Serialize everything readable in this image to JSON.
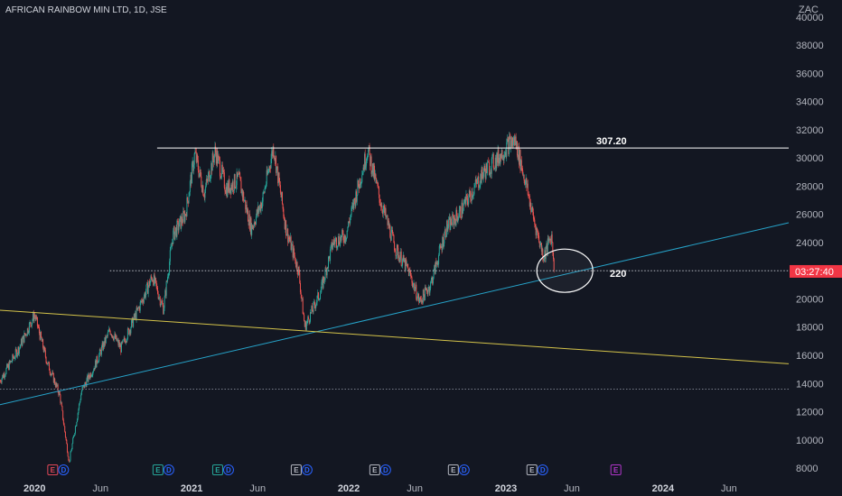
{
  "colors": {
    "background": "#131722",
    "up": "#26a69a",
    "down": "#ef5350",
    "wick": "#b2b5be",
    "axis_text": "#b2b5be",
    "resistance": "#ffffff",
    "trend_blue": "#26a3c9",
    "trend_yellow": "#d4c34a",
    "price_badge": "#f23645",
    "earnings": "#e04758",
    "dividend": "#2962ff",
    "split": "#b2b5be",
    "future": "#b035c9",
    "green_event": "#26a69a"
  },
  "chart_data": {
    "type": "candlestick",
    "title": "AFRICAN RAINBOW MIN LTD, 1D, JSE",
    "currency": "ZAC",
    "y_ticks": [
      8000,
      10000,
      12000,
      14000,
      16000,
      18000,
      20000,
      22000,
      24000,
      26000,
      28000,
      30000,
      32000,
      34000,
      36000,
      38000,
      40000
    ],
    "x_labels": [
      {
        "label": "2020",
        "bold": true,
        "t": 2020.0
      },
      {
        "label": "Jun",
        "bold": false,
        "t": 2020.42
      },
      {
        "label": "2021",
        "bold": true,
        "t": 2021.0
      },
      {
        "label": "Jun",
        "bold": false,
        "t": 2021.42
      },
      {
        "label": "2022",
        "bold": true,
        "t": 2022.0
      },
      {
        "label": "Jun",
        "bold": false,
        "t": 2022.42
      },
      {
        "label": "2023",
        "bold": true,
        "t": 2023.0
      },
      {
        "label": "Jun",
        "bold": false,
        "t": 2023.42
      },
      {
        "label": "2024",
        "bold": true,
        "t": 2024.0
      },
      {
        "label": "Jun",
        "bold": false,
        "t": 2024.42
      }
    ],
    "x_range": [
      2019.78,
      2024.8
    ],
    "y_range": [
      7300,
      41200
    ],
    "price_path": [
      [
        2019.78,
        14200
      ],
      [
        2019.9,
        16500
      ],
      [
        2020.0,
        18900
      ],
      [
        2020.08,
        15500
      ],
      [
        2020.16,
        13200
      ],
      [
        2020.22,
        8400
      ],
      [
        2020.3,
        13500
      ],
      [
        2020.38,
        15200
      ],
      [
        2020.48,
        17800
      ],
      [
        2020.55,
        16500
      ],
      [
        2020.65,
        19000
      ],
      [
        2020.75,
        21600
      ],
      [
        2020.82,
        19300
      ],
      [
        2020.88,
        24500
      ],
      [
        2020.96,
        26000
      ],
      [
        2021.02,
        30300
      ],
      [
        2021.08,
        27500
      ],
      [
        2021.15,
        30500
      ],
      [
        2021.22,
        27800
      ],
      [
        2021.3,
        28500
      ],
      [
        2021.38,
        25000
      ],
      [
        2021.45,
        27000
      ],
      [
        2021.52,
        30800
      ],
      [
        2021.6,
        25000
      ],
      [
        2021.68,
        22000
      ],
      [
        2021.72,
        18000
      ],
      [
        2021.82,
        20500
      ],
      [
        2021.9,
        24000
      ],
      [
        2021.98,
        24500
      ],
      [
        2022.06,
        28000
      ],
      [
        2022.12,
        30600
      ],
      [
        2022.2,
        27000
      ],
      [
        2022.3,
        23500
      ],
      [
        2022.38,
        22000
      ],
      [
        2022.45,
        19800
      ],
      [
        2022.52,
        21000
      ],
      [
        2022.62,
        25000
      ],
      [
        2022.7,
        26000
      ],
      [
        2022.78,
        27500
      ],
      [
        2022.86,
        29000
      ],
      [
        2022.95,
        30000
      ],
      [
        2023.02,
        31000
      ],
      [
        2023.06,
        31200
      ],
      [
        2023.12,
        28500
      ],
      [
        2023.18,
        25500
      ],
      [
        2023.24,
        23000
      ],
      [
        2023.29,
        24500
      ],
      [
        2023.31,
        22000
      ]
    ],
    "resistance": {
      "value": 30700,
      "label": "307.20",
      "t_start": 2020.78,
      "t_end": 2024.8
    },
    "support": {
      "value": 22000,
      "label": "220",
      "t_start": 2020.48,
      "t_end": 2024.8
    },
    "lower_level": {
      "value": 13600
    },
    "trend_blue": {
      "from": [
        2019.78,
        12500
      ],
      "to": [
        2024.8,
        25400
      ]
    },
    "trend_yellow": {
      "from": [
        2019.78,
        19200
      ],
      "to": [
        2024.8,
        15400
      ]
    },
    "highlight_circle": {
      "t": 2023.375,
      "value": 22000
    },
    "last_price": {
      "value": 21950,
      "label": "03:27:40"
    },
    "events": [
      {
        "t": 2020.15,
        "letters": [
          "E",
          "D"
        ],
        "colors": [
          "earnings",
          "dividend"
        ]
      },
      {
        "t": 2020.82,
        "letters": [
          "E",
          "D"
        ],
        "colors": [
          "green_event",
          "dividend"
        ]
      },
      {
        "t": 2021.2,
        "letters": [
          "E",
          "D"
        ],
        "colors": [
          "green_event",
          "dividend"
        ]
      },
      {
        "t": 2021.7,
        "letters": [
          "E",
          "D"
        ],
        "colors": [
          "split",
          "dividend"
        ]
      },
      {
        "t": 2022.2,
        "letters": [
          "E",
          "D"
        ],
        "colors": [
          "split",
          "dividend"
        ]
      },
      {
        "t": 2022.7,
        "letters": [
          "E",
          "D"
        ],
        "colors": [
          "split",
          "dividend"
        ]
      },
      {
        "t": 2023.2,
        "letters": [
          "E",
          "D"
        ],
        "colors": [
          "split",
          "dividend"
        ]
      },
      {
        "t": 2023.7,
        "letters": [
          "E"
        ],
        "colors": [
          "future"
        ]
      }
    ]
  }
}
